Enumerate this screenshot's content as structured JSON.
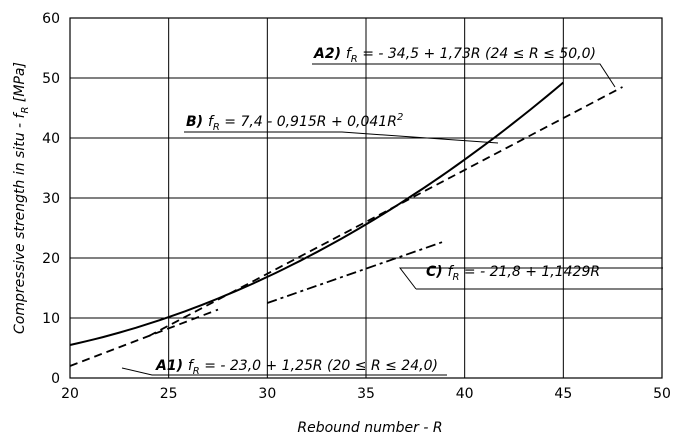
{
  "chart_data": {
    "type": "line",
    "xlabel": "Rebound number - R",
    "ylabel_main": "Compressive strength in situ - f",
    "ylabel_sub": "R",
    "ylabel_unit": " [MPa]",
    "xlim": [
      20,
      50
    ],
    "ylim": [
      0,
      60
    ],
    "xticks": [
      "20",
      "25",
      "30",
      "35",
      "40",
      "45",
      "50"
    ],
    "yticks": [
      "0",
      "10",
      "20",
      "30",
      "40",
      "50",
      "60"
    ],
    "grid": true,
    "series": [
      {
        "id": "B",
        "label": "B)",
        "style": "solid",
        "equation": {
          "pre": "f",
          "sub": "R",
          "post": " = 7,4 - 0,915R + 0,041R",
          "sup": "2"
        },
        "x": [
          20,
          45
        ],
        "coefficients": [
          7.4,
          -0.915,
          0.041
        ]
      },
      {
        "id": "A1",
        "label": "A1)",
        "style": "dashed",
        "equation": {
          "pre": "f",
          "sub": "R",
          "post": " = - 23,0 + 1,25R (20 ≤ R ≤ 24,0)",
          "sup": ""
        },
        "x": [
          20,
          27.5
        ],
        "y": [
          2.0,
          11.4
        ]
      },
      {
        "id": "A2",
        "label": "A2)",
        "style": "dashed",
        "equation": {
          "pre": "f",
          "sub": "R",
          "post": " = - 34,5 + 1,73R (24 ≤ R ≤ 50,0)",
          "sup": ""
        },
        "x": [
          24,
          48
        ],
        "y": [
          7.0,
          48.5
        ]
      },
      {
        "id": "C",
        "label": "C)",
        "style": "dashdot",
        "equation": {
          "pre": "f",
          "sub": "R",
          "post": " = - 21,8 + 1,1429R",
          "sup": ""
        },
        "x": [
          30,
          39
        ],
        "y": [
          12.5,
          22.8
        ]
      }
    ]
  }
}
